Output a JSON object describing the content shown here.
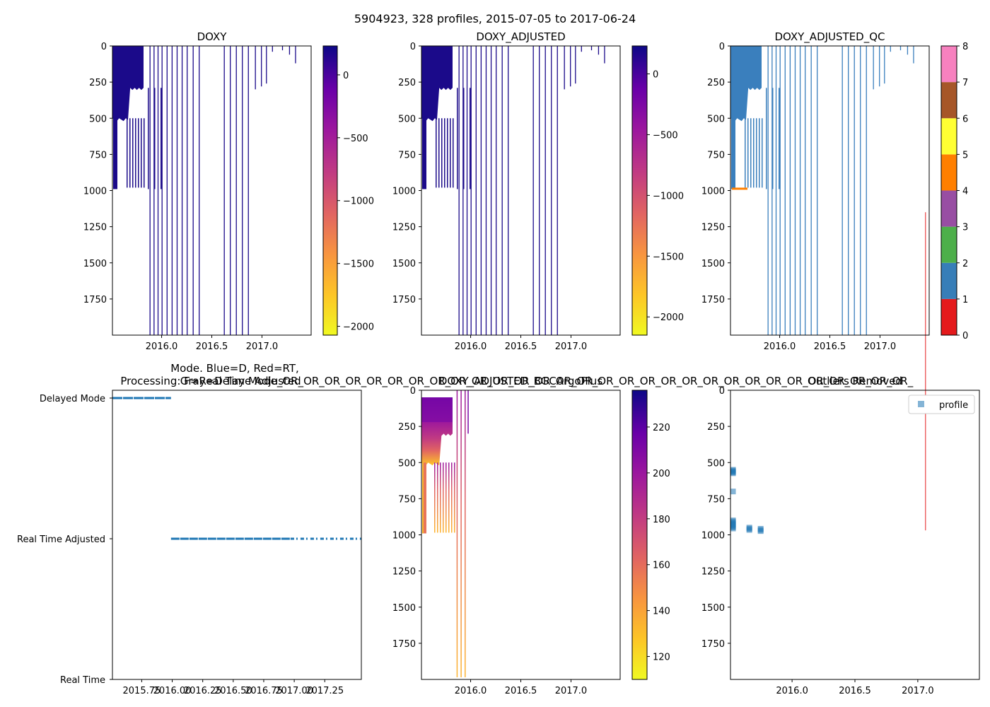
{
  "figure": {
    "suptitle": "5904923, 328 profiles, 2015-07-05 to 2017-06-24"
  },
  "chart_data": [
    {
      "id": "doxy",
      "type": "heatmap",
      "title": "DOXY",
      "x_range": [
        2015.51,
        2017.49
      ],
      "y_range": [
        0,
        2000
      ],
      "y_inverted": true,
      "x_ticks": [
        2016.0,
        2016.5,
        2017.0
      ],
      "x_tick_labels": [
        "2016.0",
        "2016.5",
        "2017.0"
      ],
      "y_ticks": [
        0,
        250,
        500,
        750,
        1000,
        1250,
        1500,
        1750
      ],
      "y_tick_labels": [
        "0",
        "250",
        "500",
        "750",
        "1000",
        "1250",
        "1500",
        "1750"
      ],
      "colorbar": {
        "cmap": "plasma_r",
        "range": [
          -2070,
          230
        ],
        "ticks": [
          0,
          -500,
          -1000,
          -1500,
          -2000
        ],
        "tick_labels": [
          "0",
          "−500",
          "−1000",
          "−1500",
          "−2000"
        ]
      },
      "dense_block": {
        "x_start": 2015.51,
        "x_end": 2015.82,
        "depth_edge_early": 500,
        "depth_edge_late": 290
      },
      "deep_profiles_x": [
        2015.88,
        2015.92,
        2015.96,
        2016.0,
        2016.05,
        2016.1,
        2016.15,
        2016.2,
        2016.25,
        2016.31,
        2016.37,
        2016.62,
        2016.68,
        2016.74,
        2016.8,
        2016.86
      ],
      "shallow_profiles_x": [
        2016.93,
        2016.99,
        2017.04,
        2017.1,
        2017.2,
        2017.27,
        2017.33
      ]
    },
    {
      "id": "doxy_adjusted",
      "type": "heatmap",
      "title": "DOXY_ADJUSTED",
      "x_range": [
        2015.51,
        2017.49
      ],
      "y_range": [
        0,
        2000
      ],
      "y_inverted": true,
      "x_ticks": [
        2016.0,
        2016.5,
        2017.0
      ],
      "x_tick_labels": [
        "2016.0",
        "2016.5",
        "2017.0"
      ],
      "y_ticks": [
        0,
        250,
        500,
        750,
        1000,
        1250,
        1500,
        1750
      ],
      "y_tick_labels": [
        "0",
        "250",
        "500",
        "750",
        "1000",
        "1250",
        "1500",
        "1750"
      ],
      "colorbar": {
        "cmap": "plasma_r",
        "range": [
          -2150,
          230
        ],
        "ticks": [
          0,
          -500,
          -1000,
          -1500,
          -2000
        ],
        "tick_labels": [
          "0",
          "−500",
          "−1000",
          "−1500",
          "−2000"
        ]
      },
      "dense_block": {
        "x_start": 2015.51,
        "x_end": 2015.82,
        "depth_edge_early": 500,
        "depth_edge_late": 290
      },
      "deep_profiles_x": [
        2015.88,
        2015.92,
        2015.96,
        2016.0,
        2016.05,
        2016.1,
        2016.15,
        2016.2,
        2016.25,
        2016.31,
        2016.37,
        2016.62,
        2016.68,
        2016.74,
        2016.8,
        2016.86
      ],
      "shallow_profiles_x": [
        2016.93,
        2016.99,
        2017.04,
        2017.1,
        2017.2,
        2017.27,
        2017.33
      ]
    },
    {
      "id": "doxy_adjusted_qc",
      "type": "heatmap",
      "title": "DOXY_ADJUSTED_QC",
      "x_range": [
        2015.51,
        2017.49
      ],
      "y_range": [
        0,
        2000
      ],
      "y_inverted": true,
      "x_ticks": [
        2016.0,
        2016.5,
        2017.0
      ],
      "x_tick_labels": [
        "2016.0",
        "2016.5",
        "2017.0"
      ],
      "y_ticks": [
        0,
        250,
        500,
        750,
        1000,
        1250,
        1500,
        1750
      ],
      "y_tick_labels": [
        "0",
        "250",
        "500",
        "750",
        "1000",
        "1250",
        "1500",
        "1750"
      ],
      "colorbar": {
        "type": "discrete",
        "range": [
          0,
          8
        ],
        "ticks": [
          0,
          1,
          2,
          3,
          4,
          5,
          6,
          7,
          8
        ],
        "tick_labels": [
          "0",
          "1",
          "2",
          "3",
          "4",
          "5",
          "6",
          "7",
          "8"
        ],
        "colors": [
          "#e41a1c",
          "#377eb8",
          "#4daf4a",
          "#984ea3",
          "#ff7f00",
          "#ffff33",
          "#a65628",
          "#f781bf",
          "#999999"
        ]
      },
      "dense_block": {
        "x_start": 2015.51,
        "x_end": 2015.82,
        "depth_edge_early": 500,
        "depth_edge_late": 290
      },
      "deep_profiles_x": [
        2015.88,
        2015.92,
        2015.96,
        2016.0,
        2016.05,
        2016.1,
        2016.15,
        2016.2,
        2016.25,
        2016.31,
        2016.37,
        2016.62,
        2016.68,
        2016.74,
        2016.8,
        2016.86
      ],
      "shallow_profiles_x": [
        2016.93,
        2016.99,
        2017.04,
        2017.1,
        2017.2,
        2017.27,
        2017.33
      ]
    },
    {
      "id": "mode",
      "type": "scatter",
      "title_line1": "Mode. Blue=D, Red=RT,",
      "title_line2": "Processing: F=Real Time Adjusted",
      "title_overlay": "Gray=Delay Mode_OR_OR_OR_OR_OR_OR_OR_OR_OR_OR_OR_OR_OR_OR_OR_OR_OR_OR_OR_OR_OR_OR_OR_OR_OR_OR_OR_OR_OR_OR_",
      "x_range": [
        2015.51,
        2017.55
      ],
      "categories": [
        "Delayed Mode",
        "Real Time Adjusted",
        "Real Time"
      ],
      "x_ticks": [
        2015.75,
        2016.0,
        2016.25,
        2016.5,
        2016.75,
        2017.0,
        2017.25
      ],
      "x_tick_labels": [
        "2015.75",
        "2016.00",
        "2016.25",
        "2016.50",
        "2016.75",
        "2017.00",
        "2017.25"
      ],
      "series": [
        {
          "name": "Delayed Mode",
          "x_start": 2015.51,
          "x_end": 2015.99,
          "color": "#1f77b4"
        },
        {
          "name": "Real Time Adjusted",
          "x_start": 2015.99,
          "x_end": 2016.97,
          "x_sparse_end": 2017.55,
          "color": "#1f77b4"
        }
      ]
    },
    {
      "id": "bgcargoplus",
      "type": "heatmap",
      "title": "DOXY_ADJUSTED_BGCArgoPlus",
      "x_range": [
        2015.51,
        2017.49
      ],
      "y_range": [
        0,
        2000
      ],
      "y_inverted": true,
      "x_ticks": [
        2016.0,
        2016.5,
        2017.0
      ],
      "x_tick_labels": [
        "2016.0",
        "2016.5",
        "2017.0"
      ],
      "y_ticks": [
        0,
        250,
        500,
        750,
        1000,
        1250,
        1500,
        1750
      ],
      "y_tick_labels": [
        "0",
        "250",
        "500",
        "750",
        "1000",
        "1250",
        "1500",
        "1750"
      ],
      "colorbar": {
        "cmap": "plasma_r",
        "range": [
          110,
          236
        ],
        "ticks": [
          120,
          140,
          160,
          180,
          200,
          220
        ],
        "tick_labels": [
          "120",
          "140",
          "160",
          "180",
          "200",
          "220"
        ]
      },
      "deep_profiles_x": [
        2015.86,
        2015.9,
        2015.94
      ],
      "shallow_profiles_x": [
        2015.97
      ]
    },
    {
      "id": "outliers",
      "type": "scatter",
      "title": "Outliers Removed",
      "x_range": [
        2015.51,
        2017.49
      ],
      "y_range": [
        0,
        2000
      ],
      "y_inverted": true,
      "x_ticks": [
        2016.0,
        2016.5,
        2017.0
      ],
      "x_tick_labels": [
        "2016.0",
        "2016.5",
        "2017.0"
      ],
      "y_ticks": [
        0,
        250,
        500,
        750,
        1000,
        1250,
        1500,
        1750
      ],
      "y_tick_labels": [
        "0",
        "250",
        "500",
        "750",
        "1000",
        "1250",
        "1500",
        "1750"
      ],
      "legend": {
        "label": "profile",
        "location": "upper right"
      },
      "points": [
        {
          "x": 2015.53,
          "y": 550
        },
        {
          "x": 2015.53,
          "y": 556
        },
        {
          "x": 2015.53,
          "y": 562
        },
        {
          "x": 2015.53,
          "y": 568
        },
        {
          "x": 2015.53,
          "y": 574
        },
        {
          "x": 2015.53,
          "y": 700
        },
        {
          "x": 2015.53,
          "y": 900
        },
        {
          "x": 2015.53,
          "y": 908
        },
        {
          "x": 2015.53,
          "y": 916
        },
        {
          "x": 2015.53,
          "y": 924
        },
        {
          "x": 2015.53,
          "y": 932
        },
        {
          "x": 2015.53,
          "y": 940
        },
        {
          "x": 2015.53,
          "y": 948
        },
        {
          "x": 2015.53,
          "y": 956
        },
        {
          "x": 2015.66,
          "y": 950
        },
        {
          "x": 2015.66,
          "y": 958
        },
        {
          "x": 2015.66,
          "y": 966
        },
        {
          "x": 2015.75,
          "y": 958
        },
        {
          "x": 2015.75,
          "y": 966
        },
        {
          "x": 2015.75,
          "y": 974
        }
      ]
    }
  ]
}
